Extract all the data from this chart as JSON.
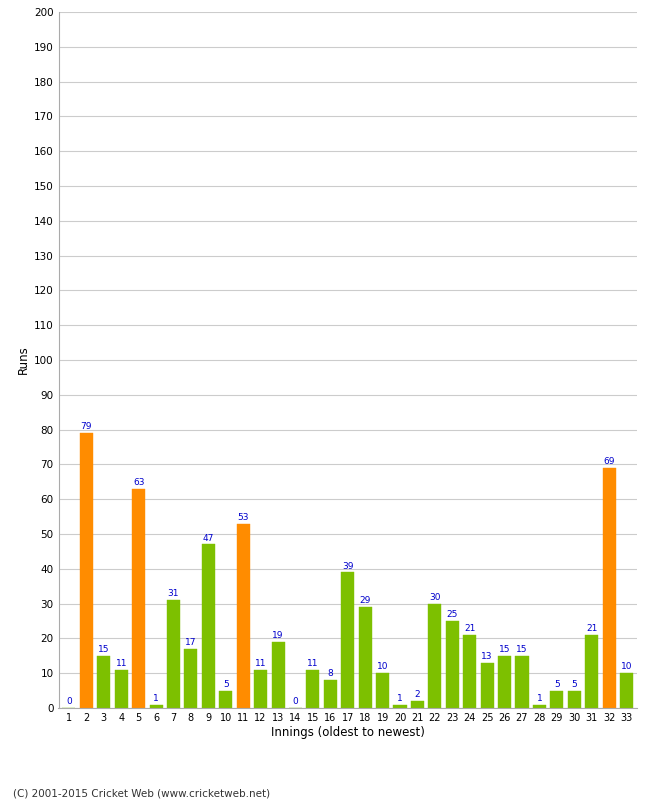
{
  "xlabel": "Innings (oldest to newest)",
  "ylabel": "Runs",
  "categories": [
    1,
    2,
    3,
    4,
    5,
    6,
    7,
    8,
    9,
    10,
    11,
    12,
    13,
    14,
    15,
    16,
    17,
    18,
    19,
    20,
    21,
    22,
    23,
    24,
    25,
    26,
    27,
    28,
    29,
    30,
    31,
    32,
    33
  ],
  "values": [
    0,
    79,
    15,
    11,
    63,
    1,
    31,
    17,
    47,
    5,
    53,
    11,
    19,
    0,
    11,
    8,
    39,
    29,
    10,
    1,
    2,
    30,
    25,
    21,
    13,
    15,
    15,
    1,
    5,
    5,
    21,
    69,
    10
  ],
  "colors": [
    "#7dc000",
    "#ff8c00",
    "#7dc000",
    "#7dc000",
    "#ff8c00",
    "#7dc000",
    "#7dc000",
    "#7dc000",
    "#7dc000",
    "#7dc000",
    "#ff8c00",
    "#7dc000",
    "#7dc000",
    "#7dc000",
    "#7dc000",
    "#7dc000",
    "#7dc000",
    "#7dc000",
    "#7dc000",
    "#7dc000",
    "#7dc000",
    "#7dc000",
    "#7dc000",
    "#7dc000",
    "#7dc000",
    "#7dc000",
    "#7dc000",
    "#7dc000",
    "#7dc000",
    "#7dc000",
    "#7dc000",
    "#ff8c00",
    "#7dc000"
  ],
  "ylim": [
    0,
    200
  ],
  "yticks": [
    0,
    10,
    20,
    30,
    40,
    50,
    60,
    70,
    80,
    90,
    100,
    110,
    120,
    130,
    140,
    150,
    160,
    170,
    180,
    190,
    200
  ],
  "label_color": "#0000cc",
  "background_color": "#ffffff",
  "grid_color": "#cccccc",
  "footer": "(C) 2001-2015 Cricket Web (www.cricketweb.net)"
}
